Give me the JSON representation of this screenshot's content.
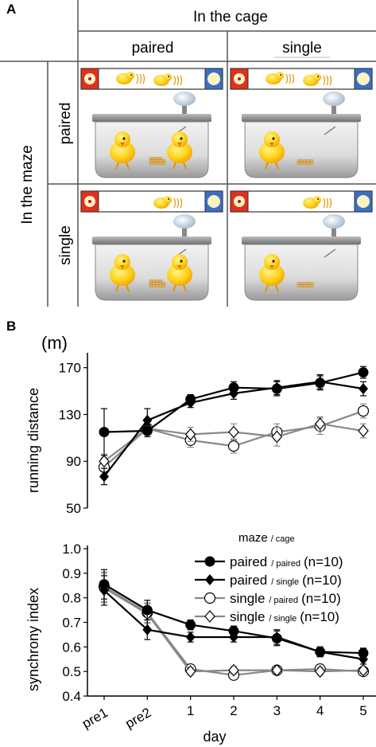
{
  "panel_a": {
    "label": "A",
    "col_header": "In the cage",
    "row_header": "In the maze",
    "col_labels": [
      "paired",
      "single"
    ],
    "row_labels": [
      "paired",
      "single"
    ]
  },
  "panel_b": {
    "label": "B",
    "unit": "(m)",
    "legend_title": "maze",
    "legend_title_sub": "/ cage"
  },
  "chart_data": [
    {
      "type": "line",
      "title": "",
      "xlabel": "",
      "ylabel": "running distance",
      "ylim": [
        50,
        180
      ],
      "yticks": [
        50,
        90,
        130,
        170
      ],
      "categories": [
        "pre1",
        "pre2",
        "1",
        "2",
        "3",
        "4",
        "5"
      ],
      "series": [
        {
          "name": "paired / paired",
          "marker": "circle-filled",
          "color": "#000000",
          "values": [
            115,
            116,
            143,
            153,
            152,
            157,
            166
          ],
          "errors": [
            20,
            5,
            4,
            5,
            6,
            6,
            5
          ]
        },
        {
          "name": "paired / single",
          "marker": "diamond-filled",
          "color": "#000000",
          "values": [
            77,
            125,
            140,
            148,
            153,
            158,
            152
          ],
          "errors": [
            7,
            10,
            4,
            5,
            6,
            6,
            6
          ]
        },
        {
          "name": "single / paired",
          "marker": "circle-open",
          "color": "#888888",
          "values": [
            85,
            118,
            108,
            103,
            115,
            120,
            133
          ],
          "errors": [
            8,
            5,
            6,
            6,
            7,
            7,
            6
          ]
        },
        {
          "name": "single / single",
          "marker": "diamond-open",
          "color": "#888888",
          "values": [
            90,
            118,
            113,
            115,
            111,
            122,
            116
          ],
          "errors": [
            6,
            5,
            6,
            7,
            8,
            6,
            6
          ]
        }
      ]
    },
    {
      "type": "line",
      "title": "",
      "xlabel": "day",
      "ylabel": "synchrony index",
      "ylim": [
        0.4,
        1.0
      ],
      "yticks": [
        "0.4",
        "0.5",
        "0.6",
        "0.7",
        "0.8",
        "0.9",
        "1.0"
      ],
      "categories": [
        "pre1",
        "pre2",
        "1",
        "2",
        "3",
        "4",
        "5"
      ],
      "legend_position": "top-right",
      "series": [
        {
          "name": "paired / paired",
          "legend_main": "paired",
          "legend_sub": "/ paired",
          "legend_n": "(n=10)",
          "marker": "circle-filled",
          "color": "#000000",
          "values": [
            0.855,
            0.75,
            0.69,
            0.665,
            0.635,
            0.58,
            0.575
          ],
          "errors": [
            0.06,
            0.04,
            0.02,
            0.02,
            0.03,
            0.02,
            0.02
          ]
        },
        {
          "name": "paired / single",
          "legend_main": "paired",
          "legend_sub": "/ single",
          "legend_n": "(n=10)",
          "marker": "diamond-filled",
          "color": "#000000",
          "values": [
            0.83,
            0.67,
            0.64,
            0.64,
            0.64,
            0.58,
            0.55
          ],
          "errors": [
            0.06,
            0.04,
            0.02,
            0.02,
            0.03,
            0.02,
            0.02
          ]
        },
        {
          "name": "single / paired",
          "legend_main": "single",
          "legend_sub": "/ paired",
          "legend_n": "(n=10)",
          "marker": "circle-open",
          "color": "#888888",
          "values": [
            0.845,
            0.74,
            0.51,
            0.485,
            0.505,
            0.51,
            0.5
          ],
          "errors": [
            0.06,
            0.04,
            0.015,
            0.015,
            0.015,
            0.015,
            0.015
          ]
        },
        {
          "name": "single / single",
          "legend_main": "single",
          "legend_sub": "/ single",
          "legend_n": "(n=10)",
          "marker": "diamond-open",
          "color": "#888888",
          "values": [
            0.84,
            0.735,
            0.5,
            0.505,
            0.505,
            0.5,
            0.505
          ],
          "errors": [
            0.06,
            0.04,
            0.015,
            0.015,
            0.015,
            0.015,
            0.015
          ]
        }
      ]
    }
  ]
}
